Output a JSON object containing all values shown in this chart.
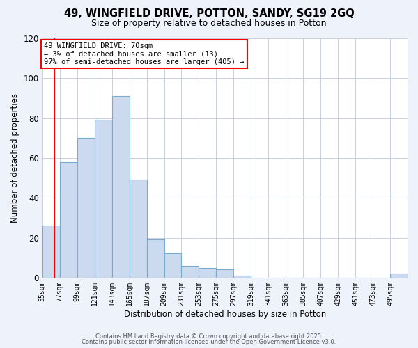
{
  "title": "49, WINGFIELD DRIVE, POTTON, SANDY, SG19 2GQ",
  "subtitle": "Size of property relative to detached houses in Potton",
  "xlabel": "Distribution of detached houses by size in Potton",
  "ylabel": "Number of detached properties",
  "bin_labels": [
    "55sqm",
    "77sqm",
    "99sqm",
    "121sqm",
    "143sqm",
    "165sqm",
    "187sqm",
    "209sqm",
    "231sqm",
    "253sqm",
    "275sqm",
    "297sqm",
    "319sqm",
    "341sqm",
    "363sqm",
    "385sqm",
    "407sqm",
    "429sqm",
    "451sqm",
    "473sqm",
    "495sqm"
  ],
  "bin_edges": [
    55,
    77,
    99,
    121,
    143,
    165,
    187,
    209,
    231,
    253,
    275,
    297,
    319,
    341,
    363,
    385,
    407,
    429,
    451,
    473,
    495,
    517
  ],
  "bar_values": [
    26,
    58,
    70,
    79,
    91,
    49,
    19,
    12,
    6,
    5,
    4,
    1,
    0,
    0,
    0,
    0,
    0,
    0,
    0,
    0,
    2
  ],
  "bar_color": "#ccdaf0",
  "bar_edgecolor": "#7aabcc",
  "ylim": [
    0,
    120
  ],
  "yticks": [
    0,
    20,
    40,
    60,
    80,
    100,
    120
  ],
  "red_line_x": 70,
  "annotation_text": "49 WINGFIELD DRIVE: 70sqm\n← 3% of detached houses are smaller (13)\n97% of semi-detached houses are larger (405) →",
  "footer_line1": "Contains HM Land Registry data © Crown copyright and database right 2025.",
  "footer_line2": "Contains public sector information licensed under the Open Government Licence v3.0.",
  "bg_color": "#eef2fb",
  "plot_bg_color": "#ffffff",
  "grid_color": "#c8d0e0"
}
